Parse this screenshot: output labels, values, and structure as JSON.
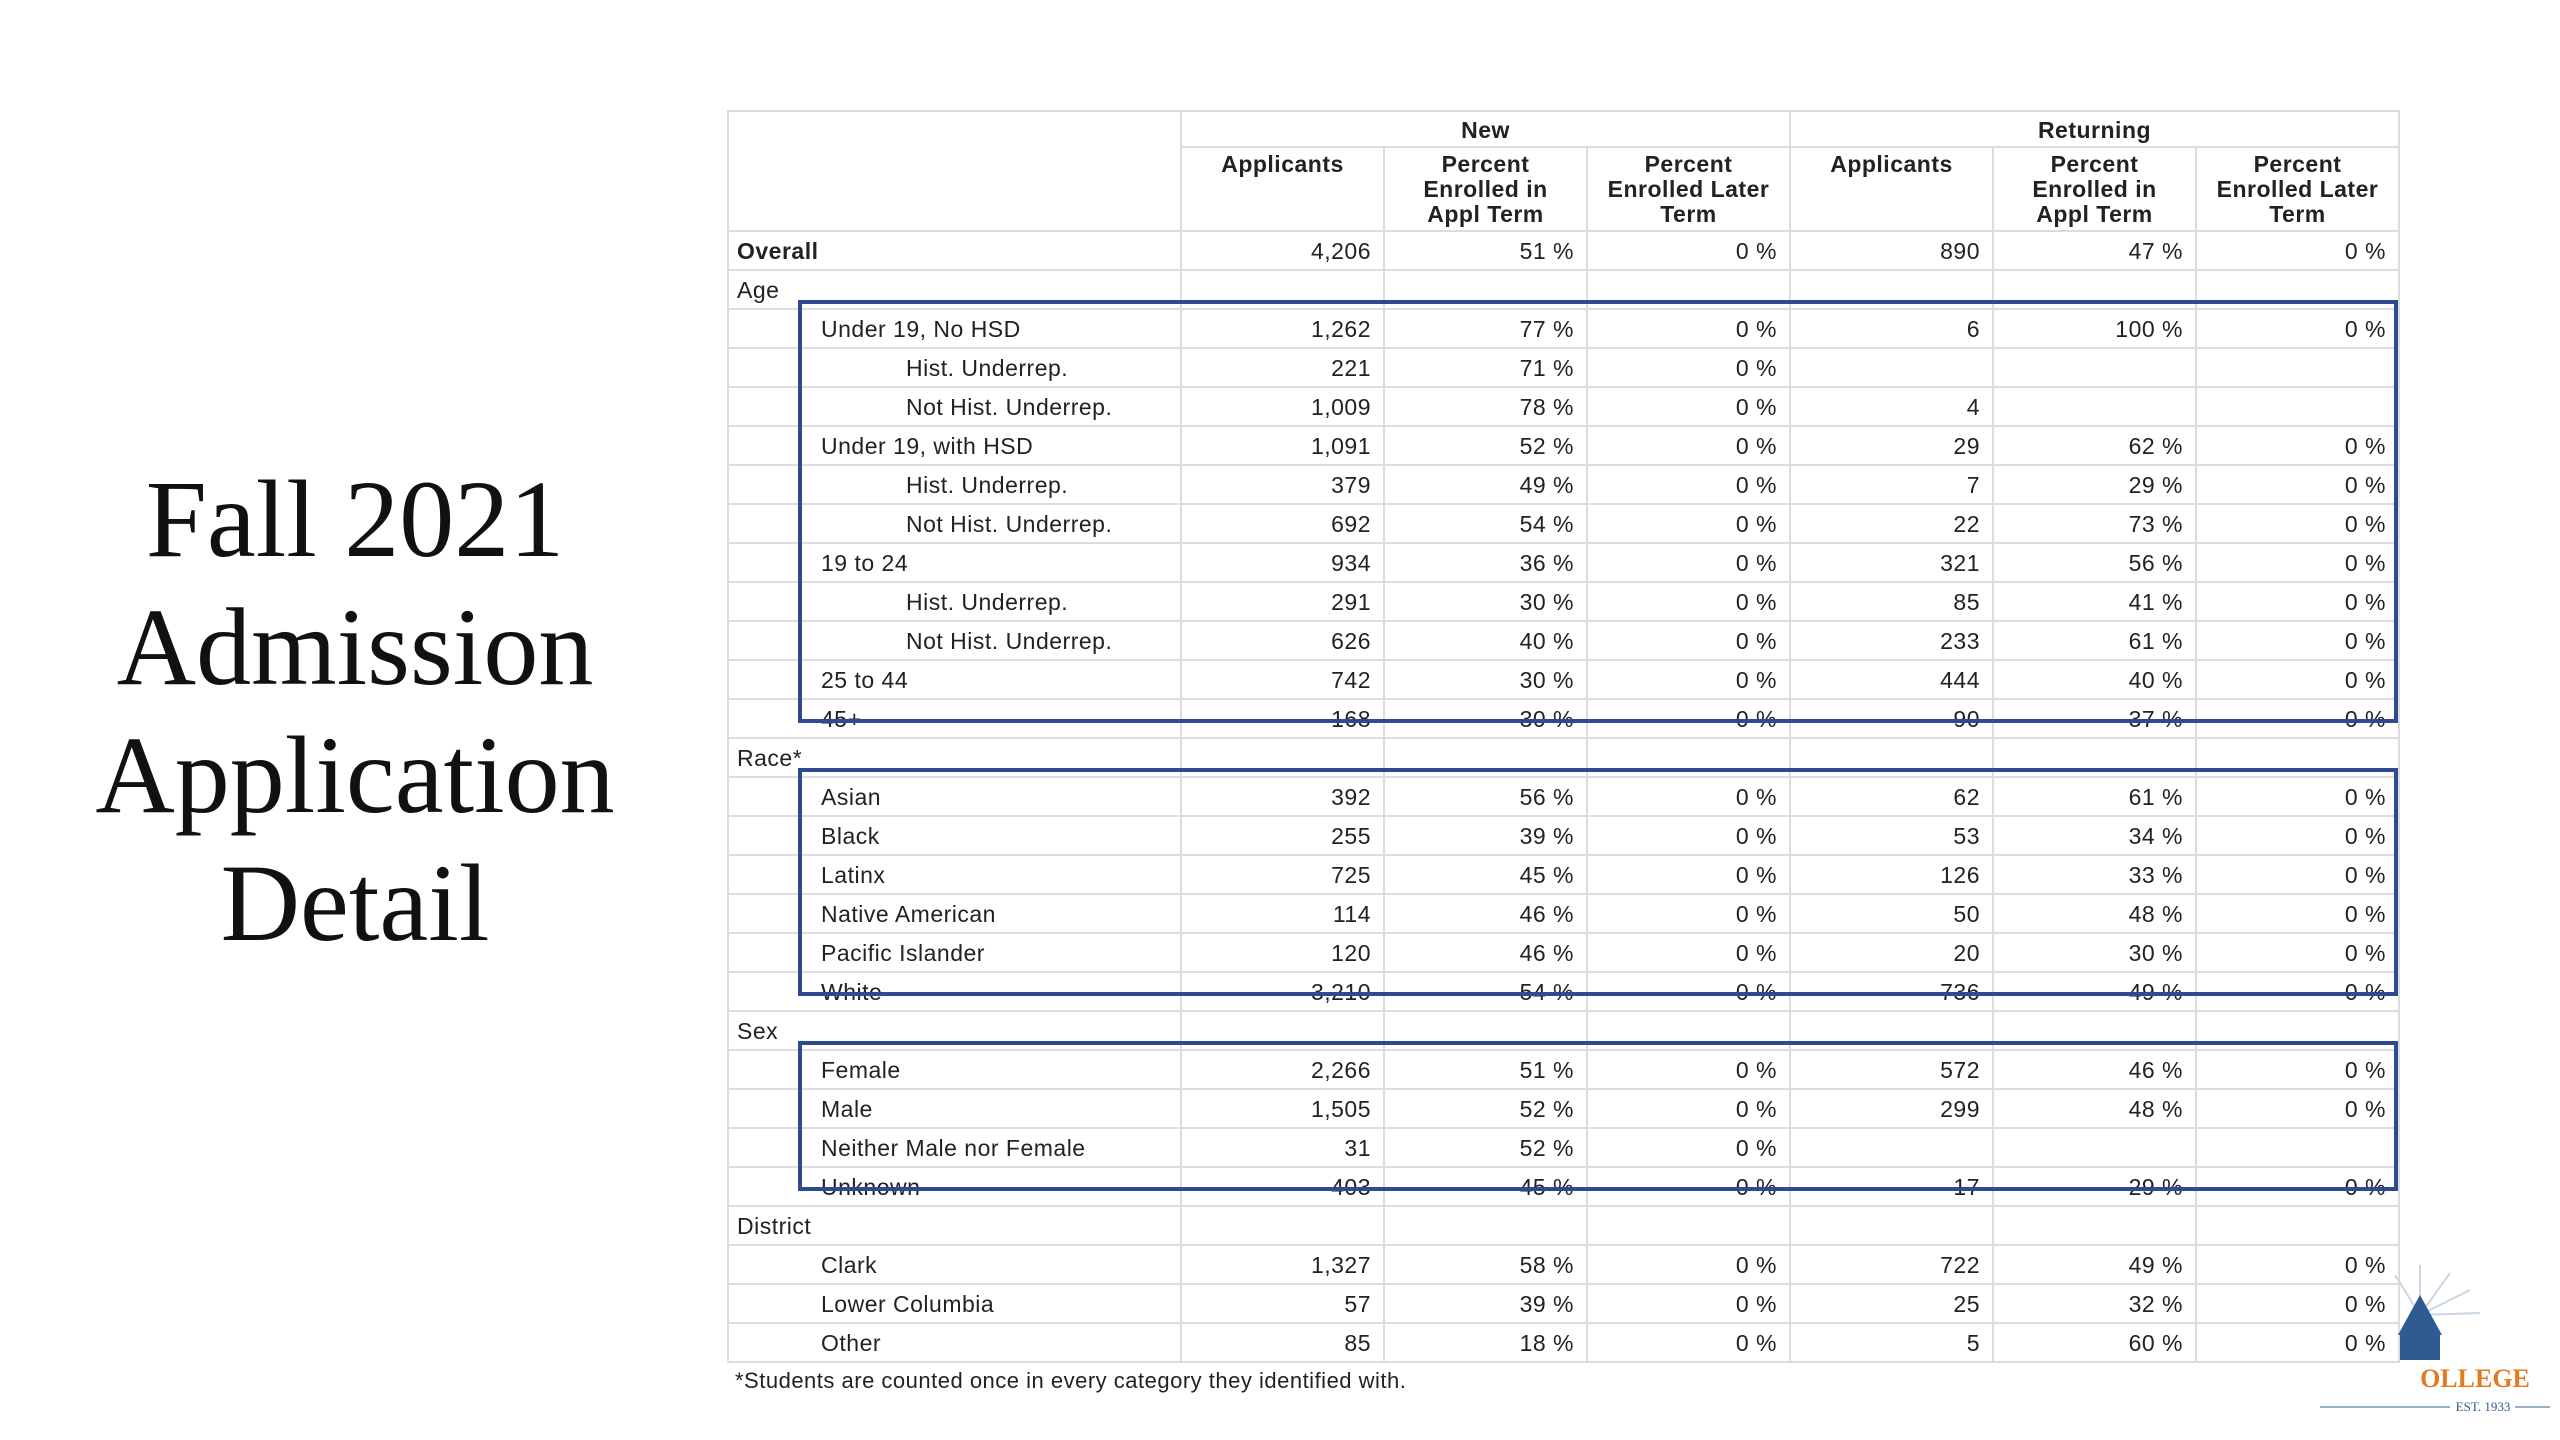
{
  "title": [
    "Fall 2021",
    "Admission",
    "Application",
    "Detail"
  ],
  "table": {
    "groups": [
      {
        "name": "New",
        "columns": [
          "Applicants",
          "Percent Enrolled in Appl Term",
          "Percent Enrolled Later Term"
        ]
      },
      {
        "name": "Returning",
        "columns": [
          "Applicants",
          "Percent Enrolled in Appl Term",
          "Percent Enrolled Later Term"
        ]
      }
    ],
    "overall": {
      "label": "Overall",
      "cells": [
        "4,206",
        "51 %",
        "0 %",
        "890",
        "47 %",
        "0 %"
      ]
    },
    "sections": [
      {
        "name": "Age",
        "rows": [
          {
            "label": "Under 19, No HSD",
            "cells": [
              "1,262",
              "77 %",
              "0 %",
              "6",
              "100 %",
              "0 %"
            ],
            "rows": [
              {
                "label": "Hist. Underrep.",
                "cells": [
                  "221",
                  "71 %",
                  "0 %",
                  null,
                  null,
                  null
                ]
              },
              {
                "label": "Not Hist. Underrep.",
                "cells": [
                  "1,009",
                  "78 %",
                  "0 %",
                  "4",
                  null,
                  null
                ]
              }
            ]
          },
          {
            "label": "Under 19, with HSD",
            "cells": [
              "1,091",
              "52 %",
              "0 %",
              "29",
              "62 %",
              "0 %"
            ],
            "rows": [
              {
                "label": "Hist. Underrep.",
                "cells": [
                  "379",
                  "49 %",
                  "0 %",
                  "7",
                  "29 %",
                  "0 %"
                ]
              },
              {
                "label": "Not Hist. Underrep.",
                "cells": [
                  "692",
                  "54 %",
                  "0 %",
                  "22",
                  "73 %",
                  "0 %"
                ]
              }
            ]
          },
          {
            "label": "19 to 24",
            "cells": [
              "934",
              "36 %",
              "0 %",
              "321",
              "56 %",
              "0 %"
            ],
            "rows": [
              {
                "label": "Hist. Underrep.",
                "cells": [
                  "291",
                  "30 %",
                  "0 %",
                  "85",
                  "41 %",
                  "0 %"
                ]
              },
              {
                "label": "Not Hist. Underrep.",
                "cells": [
                  "626",
                  "40 %",
                  "0 %",
                  "233",
                  "61 %",
                  "0 %"
                ]
              }
            ]
          },
          {
            "label": "25 to 44",
            "cells": [
              "742",
              "30 %",
              "0 %",
              "444",
              "40 %",
              "0 %"
            ]
          },
          {
            "label": "45+",
            "cells": [
              "168",
              "30 %",
              "0 %",
              "90",
              "37 %",
              "0 %"
            ]
          }
        ]
      },
      {
        "name": "Race*",
        "rows": [
          {
            "label": "Asian",
            "cells": [
              "392",
              "56 %",
              "0 %",
              "62",
              "61 %",
              "0 %"
            ]
          },
          {
            "label": "Black",
            "cells": [
              "255",
              "39 %",
              "0 %",
              "53",
              "34 %",
              "0 %"
            ]
          },
          {
            "label": "Latinx",
            "cells": [
              "725",
              "45 %",
              "0 %",
              "126",
              "33 %",
              "0 %"
            ]
          },
          {
            "label": "Native American",
            "cells": [
              "114",
              "46 %",
              "0 %",
              "50",
              "48 %",
              "0 %"
            ]
          },
          {
            "label": "Pacific Islander",
            "cells": [
              "120",
              "46 %",
              "0 %",
              "20",
              "30 %",
              "0 %"
            ]
          },
          {
            "label": "White",
            "cells": [
              "3,210",
              "54 %",
              "0 %",
              "736",
              "49 %",
              "0 %"
            ]
          }
        ]
      },
      {
        "name": "Sex",
        "rows": [
          {
            "label": "Female",
            "cells": [
              "2,266",
              "51 %",
              "0 %",
              "572",
              "46 %",
              "0 %"
            ]
          },
          {
            "label": "Male",
            "cells": [
              "1,505",
              "52 %",
              "0 %",
              "299",
              "48 %",
              "0 %"
            ]
          },
          {
            "label": "Neither Male nor Female",
            "cells": [
              "31",
              "52 %",
              "0 %",
              null,
              null,
              null
            ]
          },
          {
            "label": "Unknown",
            "cells": [
              "403",
              "45 %",
              "0 %",
              "17",
              "29 %",
              "0 %"
            ]
          }
        ]
      },
      {
        "name": "District",
        "rows": [
          {
            "label": "Clark",
            "cells": [
              "1,327",
              "58 %",
              "0 %",
              "722",
              "49 %",
              "0 %"
            ]
          },
          {
            "label": "Lower Columbia",
            "cells": [
              "57",
              "39 %",
              "0 %",
              "25",
              "32 %",
              "0 %"
            ]
          },
          {
            "label": "Other",
            "cells": [
              "85",
              "18 %",
              "0 %",
              "5",
              "60 %",
              "0 %"
            ]
          }
        ]
      }
    ],
    "footnote": "*Students are counted once in every category they identified with."
  },
  "logo": {
    "name": "OLLEGE",
    "est": "EST. 1933"
  }
}
